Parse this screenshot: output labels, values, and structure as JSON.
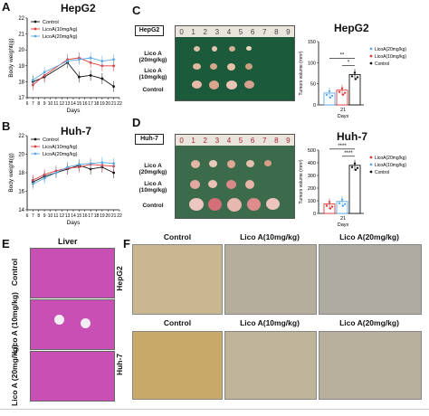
{
  "panels": {
    "a": {
      "letter": "A",
      "title": "HepG2"
    },
    "b": {
      "letter": "B",
      "title": "Huh-7"
    },
    "c": {
      "letter": "C",
      "title": "HepG2",
      "tag": "HepG2",
      "rows": [
        "Lico A (20mg/kg)",
        "Lico A (10mg/kg)",
        "Control"
      ],
      "ruler": [
        "0",
        "1",
        "2",
        "3",
        "4",
        "5",
        "6",
        "7",
        "8",
        "9"
      ]
    },
    "d": {
      "letter": "D",
      "title": "Huh-7",
      "tag": "Huh-7",
      "rows": [
        "Lico A (20mg/kg)",
        "Lico A (10mg/kg)",
        "Control"
      ],
      "ruler": [
        "0",
        "1",
        "2",
        "3",
        "4",
        "5",
        "6",
        "7",
        "8",
        "9"
      ]
    },
    "e": {
      "letter": "E",
      "title": "Liver",
      "rows": [
        "Control",
        "Lico A (10mg/kg)",
        "Lico A (20mg/kg)"
      ]
    },
    "f": {
      "letter": "F",
      "rows": [
        "HepG2",
        "Huh-7"
      ],
      "cols": [
        "Control",
        "Lico A(10mg/kg)",
        "Lico A(20mg/kg)"
      ]
    }
  },
  "chart_data": [
    {
      "id": "A",
      "type": "line",
      "title": "HepG2",
      "xlabel": "Days",
      "ylabel": "Body weight(g)",
      "x": [
        6,
        7,
        8,
        9,
        10,
        11,
        12,
        13,
        14,
        15,
        16,
        17,
        18,
        19,
        20,
        21,
        22
      ],
      "xticks": [
        "6",
        "7",
        "8",
        "9",
        "10",
        "11",
        "12",
        "13",
        "14",
        "15",
        "16",
        "17",
        "18",
        "19",
        "20",
        "21",
        "22"
      ],
      "yticks": [
        "17",
        "18",
        "19",
        "20",
        "21",
        "22"
      ],
      "ylim": [
        17,
        22
      ],
      "legend": "top-left",
      "series": [
        {
          "name": "Control",
          "color": "#111111",
          "x": [
            7,
            9,
            13,
            15,
            17,
            19,
            21
          ],
          "values": [
            18.0,
            18.3,
            19.2,
            18.3,
            18.4,
            18.2,
            17.7
          ]
        },
        {
          "name": "LicoA(10mg/kg)",
          "color": "#e03a3a",
          "x": [
            7,
            9,
            13,
            15,
            17,
            19,
            21
          ],
          "values": [
            17.8,
            18.4,
            19.4,
            19.5,
            19.2,
            19.0,
            19.0
          ]
        },
        {
          "name": "LicoA(20mg/kg)",
          "color": "#5aa9e6",
          "x": [
            7,
            9,
            13,
            15,
            17,
            19,
            21
          ],
          "values": [
            18.1,
            18.6,
            19.3,
            19.4,
            19.5,
            19.3,
            19.4
          ]
        }
      ]
    },
    {
      "id": "B",
      "type": "line",
      "title": "Huh-7",
      "xlabel": "Days",
      "ylabel": "Body weight(g)",
      "x": [
        6,
        7,
        8,
        9,
        10,
        11,
        12,
        13,
        14,
        15,
        16,
        17,
        18,
        19,
        20,
        21,
        22
      ],
      "xticks": [
        "6",
        "7",
        "8",
        "9",
        "10",
        "11",
        "12",
        "13",
        "14",
        "15",
        "16",
        "17",
        "18",
        "19",
        "20",
        "21",
        "22"
      ],
      "yticks": [
        "14",
        "16",
        "18",
        "20",
        "22"
      ],
      "ylim": [
        14,
        22
      ],
      "legend": "top-left",
      "series": [
        {
          "name": "Control",
          "color": "#111111",
          "x": [
            7,
            9,
            11,
            13,
            15,
            17,
            19,
            21
          ],
          "values": [
            17.0,
            17.6,
            18.0,
            18.4,
            18.8,
            18.4,
            18.6,
            18.0
          ]
        },
        {
          "name": "LicoA(10mg/kg)",
          "color": "#e03a3a",
          "x": [
            7,
            9,
            11,
            13,
            15,
            17,
            19,
            21
          ],
          "values": [
            17.2,
            17.8,
            18.2,
            18.5,
            18.6,
            18.9,
            18.8,
            18.7
          ]
        },
        {
          "name": "LicoA(20mg/kg)",
          "color": "#5aa9e6",
          "x": [
            7,
            9,
            11,
            13,
            15,
            17,
            19,
            21
          ],
          "values": [
            16.8,
            17.4,
            18.0,
            18.6,
            18.9,
            19.0,
            19.1,
            19.0
          ]
        }
      ]
    },
    {
      "id": "C",
      "type": "bar",
      "xlabel": "Days",
      "ylabel": "Tumors volume (mm³)",
      "categories": [
        "21"
      ],
      "yticks": [
        "0",
        "50",
        "100",
        "150"
      ],
      "ylim": [
        0,
        150
      ],
      "legend": "right",
      "series": [
        {
          "name": "LicoA(20mg/kg)",
          "color": "#5aa9e6",
          "values": [
            28
          ]
        },
        {
          "name": "LicoA(10mg/kg)",
          "color": "#e03a3a",
          "values": [
            35
          ]
        },
        {
          "name": "Control",
          "color": "#111111",
          "values": [
            72
          ]
        }
      ],
      "annotations": [
        "**",
        "*"
      ]
    },
    {
      "id": "D",
      "type": "bar",
      "xlabel": "Days",
      "ylabel": "Tumors volume (mm³)",
      "categories": [
        "21"
      ],
      "yticks": [
        "0",
        "100",
        "200",
        "300",
        "400",
        "500"
      ],
      "ylim": [
        0,
        500
      ],
      "legend": "right",
      "series": [
        {
          "name": "LicoA(20mg/kg)",
          "color": "#e03a3a",
          "values": [
            75
          ]
        },
        {
          "name": "LicoA(10mg/kg)",
          "color": "#5aa9e6",
          "values": [
            95
          ]
        },
        {
          "name": "Control",
          "color": "#111111",
          "values": [
            380
          ]
        }
      ],
      "annotations": [
        "****",
        "****"
      ]
    }
  ]
}
